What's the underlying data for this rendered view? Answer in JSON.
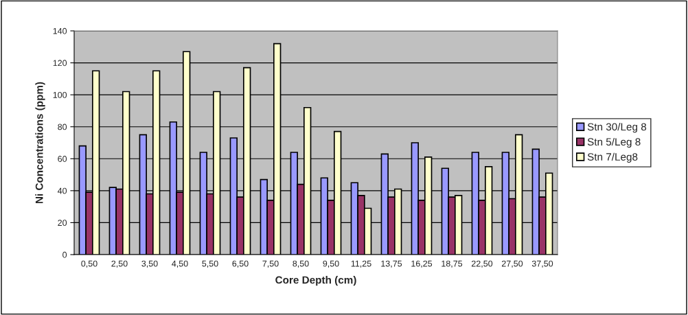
{
  "chart_data": {
    "type": "bar",
    "xlabel": "Core Depth (cm)",
    "ylabel": "Ni Concentrations (ppm)",
    "categories": [
      "0,50",
      "2,50",
      "3,50",
      "4,50",
      "5,50",
      "6,50",
      "7,50",
      "8,50",
      "9,50",
      "11,25",
      "13,75",
      "16,25",
      "18,75",
      "22,50",
      "27,50",
      "37,50"
    ],
    "series": [
      {
        "name": "Stn 30/Leg 8",
        "color": "#9999ff",
        "values": [
          68,
          42,
          75,
          83,
          64,
          73,
          47,
          64,
          48,
          45,
          63,
          70,
          54,
          64,
          64,
          66
        ]
      },
      {
        "name": "Stn 5/Leg 8",
        "color": "#993366",
        "values": [
          39,
          41,
          38,
          39,
          38,
          36,
          34,
          44,
          34,
          37,
          36,
          34,
          36,
          34,
          35,
          36
        ]
      },
      {
        "name": "Stn 7/Leg8",
        "color": "#ffffcc",
        "values": [
          115,
          102,
          115,
          127,
          102,
          117,
          132,
          92,
          77,
          29,
          41,
          61,
          37,
          55,
          75,
          51
        ]
      }
    ],
    "ylim": [
      0,
      140
    ],
    "yticks": [
      0,
      20,
      40,
      60,
      80,
      100,
      120,
      140
    ],
    "grid": "y",
    "legend": "right"
  }
}
